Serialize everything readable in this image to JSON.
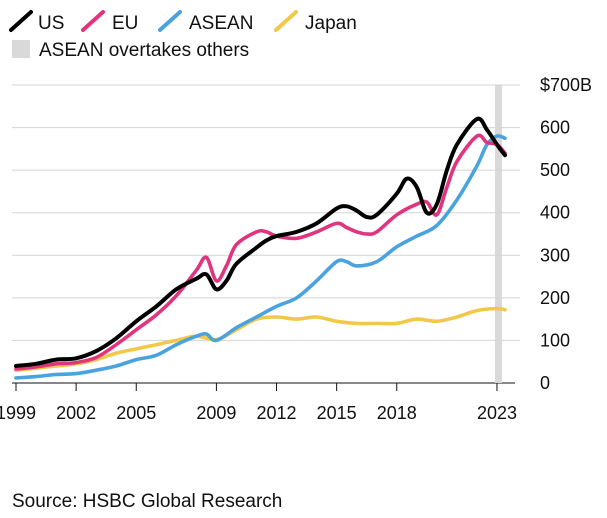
{
  "chart_data": {
    "type": "line",
    "title": "",
    "xlabel": "",
    "ylabel": "",
    "unit_label": "$700B",
    "xlim": [
      1998.8,
      2023.9
    ],
    "ylim": [
      0,
      700
    ],
    "y_ticks": [
      0,
      100,
      200,
      300,
      400,
      500,
      600,
      700
    ],
    "y_tick_labels": [
      "0",
      "100",
      "200",
      "300",
      "400",
      "500",
      "600",
      "$700B"
    ],
    "x_ticks": [
      1999,
      2002,
      2005,
      2009,
      2012,
      2015,
      2018,
      2023
    ],
    "x_tick_labels": [
      "1999",
      "2002",
      "2005",
      "2009",
      "2012",
      "2015",
      "2018",
      "2023"
    ],
    "grid": "horizontal",
    "legend_position": "top-left",
    "highlight_band": {
      "label": "ASEAN overtakes others",
      "x_start": 2022.9,
      "x_end": 2023.25,
      "color": "#d9d9d9"
    },
    "source": "Source: HSBC Global Research",
    "series": [
      {
        "name": "US",
        "color": "#000000",
        "x": [
          1999,
          2000,
          2001,
          2002,
          2003,
          2004,
          2005,
          2006,
          2007,
          2008,
          2008.5,
          2009,
          2009.5,
          2010,
          2011,
          2011.5,
          2012,
          2013,
          2014,
          2015,
          2015.5,
          2016,
          2016.5,
          2017,
          2018,
          2018.5,
          2019,
          2019.5,
          2020,
          2020.5,
          2021,
          2022,
          2022.5,
          2023,
          2023.4
        ],
        "y": [
          40,
          45,
          55,
          58,
          75,
          105,
          145,
          180,
          220,
          245,
          255,
          220,
          240,
          280,
          318,
          335,
          345,
          355,
          375,
          410,
          415,
          405,
          390,
          395,
          445,
          480,
          460,
          400,
          420,
          500,
          560,
          620,
          595,
          560,
          535
        ]
      },
      {
        "name": "EU",
        "color": "#e0347f",
        "x": [
          1999,
          2000,
          2001,
          2002,
          2003,
          2004,
          2005,
          2006,
          2007,
          2008,
          2008.5,
          2009,
          2009.5,
          2010,
          2011,
          2011.5,
          2012,
          2013,
          2014,
          2015,
          2015.5,
          2016,
          2016.5,
          2017,
          2018,
          2019,
          2019.5,
          2020,
          2020.5,
          2021,
          2022,
          2022.5,
          2023,
          2023.4
        ],
        "y": [
          33,
          38,
          45,
          48,
          60,
          90,
          125,
          160,
          205,
          265,
          295,
          240,
          275,
          325,
          355,
          355,
          345,
          340,
          355,
          375,
          365,
          355,
          350,
          355,
          395,
          420,
          425,
          395,
          460,
          520,
          580,
          565,
          560,
          540
        ]
      },
      {
        "name": "ASEAN",
        "color": "#4aa3df",
        "x": [
          1999,
          2000,
          2001,
          2002,
          2003,
          2004,
          2005,
          2006,
          2007,
          2008,
          2008.5,
          2009,
          2010,
          2011,
          2012,
          2013,
          2014,
          2015,
          2015.5,
          2016,
          2017,
          2018,
          2019,
          2020,
          2021,
          2022,
          2022.5,
          2023,
          2023.4
        ],
        "y": [
          12,
          15,
          20,
          22,
          30,
          40,
          55,
          65,
          90,
          110,
          115,
          100,
          130,
          155,
          180,
          200,
          240,
          285,
          285,
          275,
          285,
          320,
          345,
          370,
          430,
          510,
          560,
          580,
          575
        ]
      },
      {
        "name": "Japan",
        "color": "#f2c84b",
        "x": [
          1999,
          2000,
          2001,
          2002,
          2003,
          2004,
          2005,
          2006,
          2007,
          2008,
          2009,
          2010,
          2011,
          2012,
          2013,
          2014,
          2015,
          2016,
          2017,
          2018,
          2019,
          2020,
          2021,
          2022,
          2023,
          2023.4
        ],
        "y": [
          30,
          35,
          40,
          45,
          55,
          70,
          80,
          90,
          100,
          110,
          102,
          125,
          150,
          155,
          150,
          155,
          145,
          140,
          140,
          140,
          150,
          145,
          155,
          170,
          175,
          172
        ]
      }
    ]
  }
}
